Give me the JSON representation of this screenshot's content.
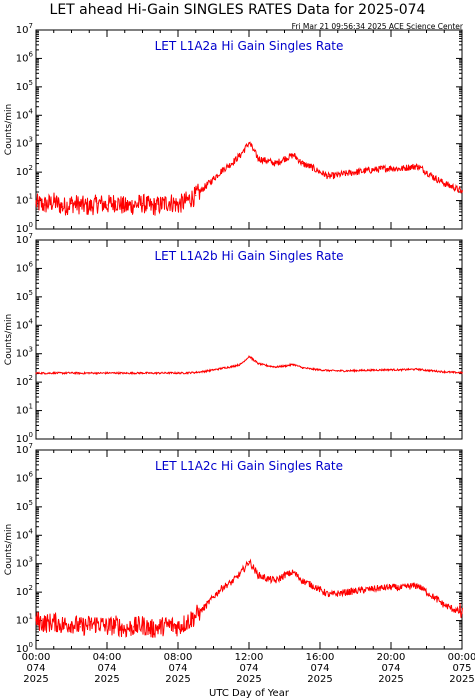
{
  "title": "LET ahead Hi-Gain SINGLES RATES Data for 2025-074",
  "stamp": "Fri Mar 21 09:56:34 2025 ACE Science Center",
  "xlabel": "UTC Day of Year",
  "ylabel": "Counts/min",
  "colors": {
    "series": "#ff0000",
    "panel_title": "#0000cc",
    "axes": "#000000"
  },
  "x_ticks": [
    {
      "time": "00:00",
      "day": "074",
      "year": "2025"
    },
    {
      "time": "04:00",
      "day": "074",
      "year": "2025"
    },
    {
      "time": "08:00",
      "day": "074",
      "year": "2025"
    },
    {
      "time": "12:00",
      "day": "074",
      "year": "2025"
    },
    {
      "time": "16:00",
      "day": "074",
      "year": "2025"
    },
    {
      "time": "20:00",
      "day": "074",
      "year": "2025"
    },
    {
      "time": "00:00",
      "day": "075",
      "year": "2025"
    }
  ],
  "y_tick_exponents": [
    0,
    1,
    2,
    3,
    4,
    5,
    6,
    7
  ],
  "chart_data": [
    {
      "type": "line",
      "title": "LET L1A2a Hi Gain Singles Rate",
      "xlabel": "",
      "ylabel": "Counts/min",
      "xlim": [
        0,
        24
      ],
      "ylim": [
        1,
        10000000
      ],
      "yscale": "log",
      "x": [
        0,
        0.5,
        1,
        1.5,
        2,
        2.5,
        3,
        3.5,
        4,
        4.5,
        5,
        5.5,
        6,
        6.5,
        7,
        7.5,
        8,
        8.5,
        9,
        9.5,
        10,
        10.5,
        11,
        11.5,
        12,
        12.5,
        13,
        13.5,
        14,
        14.5,
        15,
        15.5,
        16,
        16.5,
        17,
        17.5,
        18,
        18.5,
        19,
        19.5,
        20,
        20.5,
        21,
        21.5,
        22,
        22.5,
        23,
        23.5,
        24
      ],
      "series": [
        {
          "values": [
            8,
            7,
            9,
            6,
            8,
            7,
            6,
            8,
            7,
            9,
            6,
            7,
            8,
            6,
            7,
            9,
            7,
            10,
            15,
            30,
            60,
            120,
            200,
            400,
            1100,
            300,
            250,
            200,
            300,
            400,
            200,
            150,
            100,
            70,
            80,
            90,
            100,
            110,
            120,
            130,
            140,
            130,
            150,
            160,
            100,
            60,
            40,
            30,
            20
          ]
        }
      ]
    },
    {
      "type": "line",
      "title": "LET L1A2b Hi Gain Singles Rate",
      "xlabel": "",
      "ylabel": "Counts/min",
      "xlim": [
        0,
        24
      ],
      "ylim": [
        1,
        10000000
      ],
      "yscale": "log",
      "x": [
        0,
        0.5,
        1,
        1.5,
        2,
        2.5,
        3,
        3.5,
        4,
        4.5,
        5,
        5.5,
        6,
        6.5,
        7,
        7.5,
        8,
        8.5,
        9,
        9.5,
        10,
        10.5,
        11,
        11.5,
        12,
        12.5,
        13,
        13.5,
        14,
        14.5,
        15,
        15.5,
        16,
        16.5,
        17,
        17.5,
        18,
        18.5,
        19,
        19.5,
        20,
        20.5,
        21,
        21.5,
        22,
        22.5,
        23,
        23.5,
        24
      ],
      "series": [
        {
          "values": [
            210,
            205,
            210,
            208,
            212,
            205,
            210,
            207,
            209,
            210,
            206,
            208,
            210,
            207,
            209,
            211,
            208,
            212,
            220,
            240,
            270,
            310,
            350,
            420,
            800,
            450,
            380,
            340,
            370,
            420,
            320,
            290,
            270,
            255,
            250,
            250,
            255,
            260,
            265,
            270,
            275,
            270,
            280,
            285,
            260,
            245,
            230,
            220,
            215
          ]
        }
      ]
    },
    {
      "type": "line",
      "title": "LET L1A2c Hi Gain Singles Rate",
      "xlabel": "UTC Day of Year",
      "ylabel": "Counts/min",
      "xlim": [
        0,
        24
      ],
      "ylim": [
        1,
        10000000
      ],
      "yscale": "log",
      "x": [
        0,
        0.5,
        1,
        1.5,
        2,
        2.5,
        3,
        3.5,
        4,
        4.5,
        5,
        5.5,
        6,
        6.5,
        7,
        7.5,
        8,
        8.5,
        9,
        9.5,
        10,
        10.5,
        11,
        11.5,
        12,
        12.5,
        13,
        13.5,
        14,
        14.5,
        15,
        15.5,
        16,
        16.5,
        17,
        17.5,
        18,
        18.5,
        19,
        19.5,
        20,
        20.5,
        21,
        21.5,
        22,
        22.5,
        23,
        23.5,
        24
      ],
      "series": [
        {
          "values": [
            10,
            8,
            9,
            7,
            8,
            6,
            7,
            8,
            6,
            7,
            5,
            6,
            7,
            5,
            6,
            7,
            6,
            9,
            15,
            30,
            70,
            150,
            220,
            450,
            1200,
            400,
            300,
            250,
            400,
            500,
            250,
            180,
            120,
            80,
            90,
            100,
            110,
            120,
            130,
            140,
            150,
            140,
            160,
            170,
            100,
            60,
            35,
            25,
            18
          ]
        }
      ]
    }
  ]
}
